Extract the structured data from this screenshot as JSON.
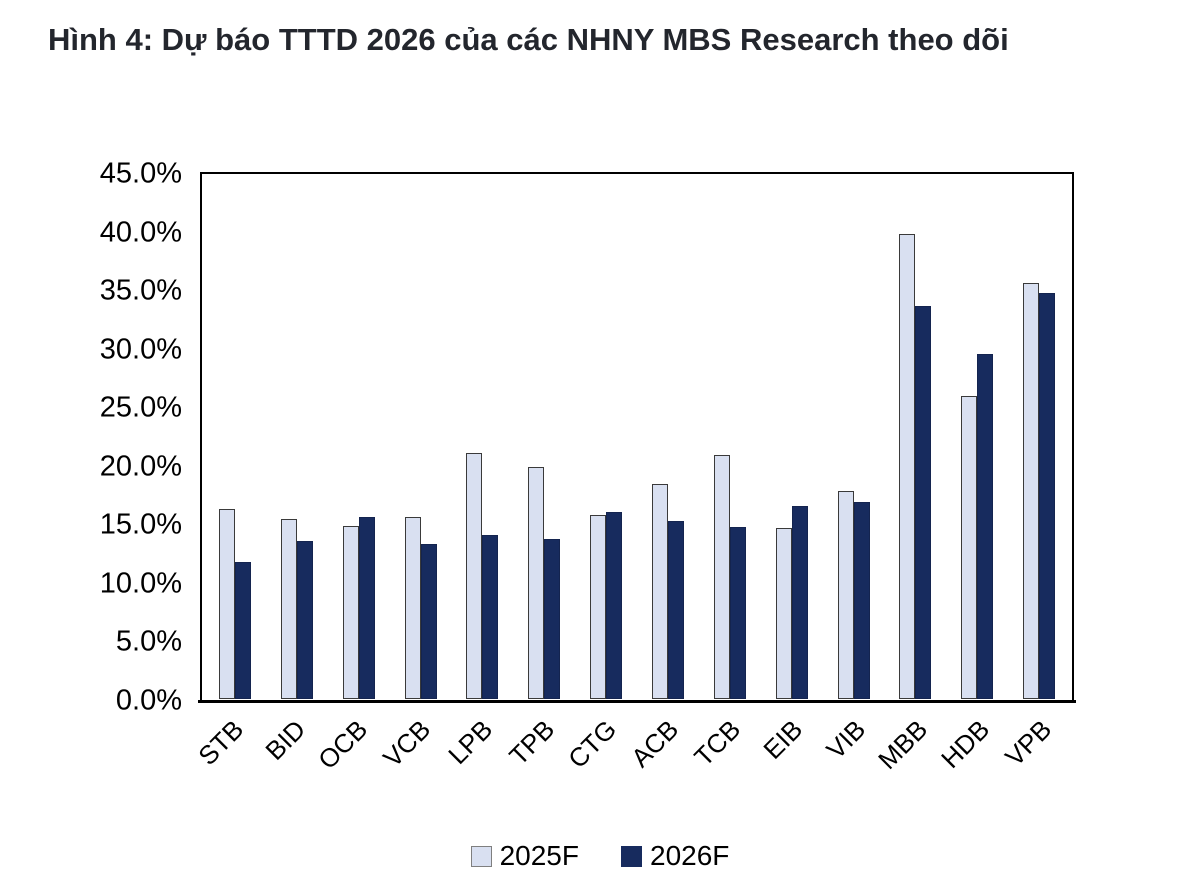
{
  "title": "Hình 4: Dự báo TTTD 2026 của các NHNY MBS Research theo dõi",
  "chart_data": {
    "type": "bar",
    "title": "Hình 4: Dự báo TTTD 2026 của các NHNY MBS Research theo dõi",
    "categories": [
      "STB",
      "BID",
      "OCB",
      "VCB",
      "LPB",
      "TPB",
      "CTG",
      "ACB",
      "TCB",
      "EIB",
      "VIB",
      "MBB",
      "HDB",
      "VPB"
    ],
    "series": [
      {
        "name": "2025F",
        "color": "#d9e0f1",
        "values": [
          16.2,
          15.4,
          14.8,
          15.5,
          21.0,
          19.8,
          15.7,
          18.4,
          20.8,
          14.6,
          17.8,
          39.7,
          25.9,
          35.5
        ]
      },
      {
        "name": "2026F",
        "color": "#172b5e",
        "values": [
          11.7,
          13.5,
          15.5,
          13.2,
          14.0,
          13.7,
          16.0,
          15.2,
          14.7,
          16.5,
          16.8,
          33.6,
          29.5,
          34.7
        ]
      }
    ],
    "ylabel": "",
    "xlabel": "",
    "ylim": [
      0,
      45
    ],
    "ytick_step": 5,
    "yticks": [
      "45.0%",
      "40.0%",
      "35.0%",
      "30.0%",
      "25.0%",
      "20.0%",
      "15.0%",
      "10.0%",
      "5.0%",
      "0.0%"
    ],
    "unit": "percent",
    "grid": false,
    "legend_position": "bottom",
    "x_label_rotation_deg": -45
  },
  "colors": {
    "series_2025F": "#d9e0f1",
    "series_2026F": "#172b5e",
    "plot_border": "#000000",
    "title_text": "#23262d",
    "axis_text": "#000000"
  }
}
